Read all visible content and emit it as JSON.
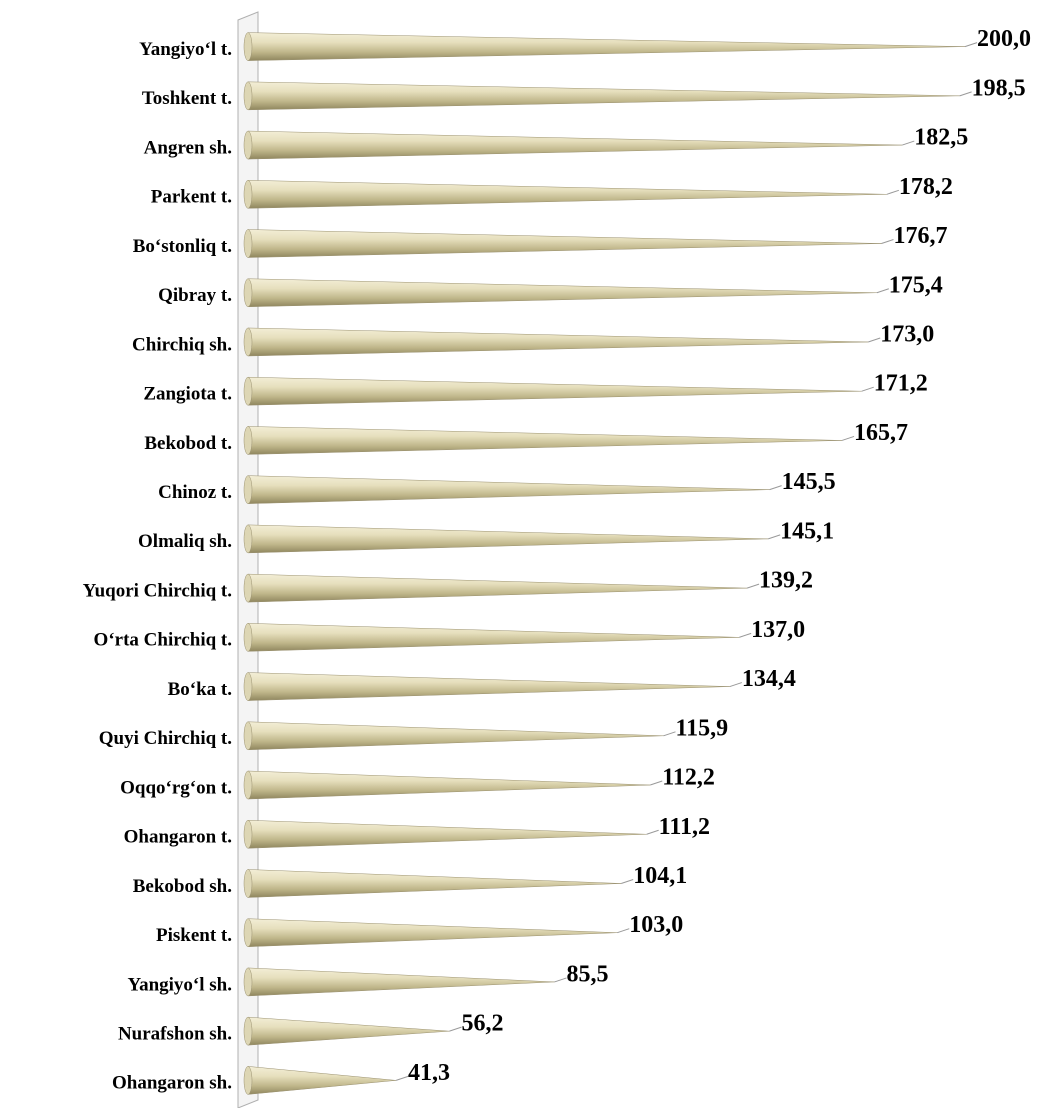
{
  "chart_data": {
    "type": "bar",
    "orientation": "horizontal",
    "color": "#d6cfa8",
    "categories": [
      "Yangiyo‘l t.",
      "Toshkent t.",
      "Angren sh.",
      "Parkent t.",
      "Bo‘stonliq t.",
      "Qibray t.",
      "Chirchiq sh.",
      "Zangiota t.",
      "Bekobod t.",
      "Chinoz t.",
      "Olmaliq sh.",
      "Yuqori Chirchiq t.",
      "O‘rta Chirchiq t.",
      "Bo‘ka t.",
      "Quyi Chirchiq t.",
      "Oqqo‘rg‘on t.",
      "Ohangaron t.",
      "Bekobod sh.",
      "Piskent t.",
      "Yangiyo‘l sh.",
      "Nurafshon sh.",
      "Ohangaron sh."
    ],
    "values": [
      200.0,
      198.5,
      182.5,
      178.2,
      176.7,
      175.4,
      173.0,
      171.2,
      165.7,
      145.5,
      145.1,
      139.2,
      137.0,
      134.4,
      115.9,
      112.2,
      111.2,
      104.1,
      103.0,
      85.5,
      56.2,
      41.3
    ],
    "value_labels": [
      "200,0",
      "198,5",
      "182,5",
      "178,2",
      "176,7",
      "175,4",
      "173,0",
      "171,2",
      "165,7",
      "145,5",
      "145,1",
      "139,2",
      "137,0",
      "134,4",
      "115,9",
      "112,2",
      "111,2",
      "104,1",
      "103,0",
      "85,5",
      "56,2",
      "41,3"
    ]
  }
}
